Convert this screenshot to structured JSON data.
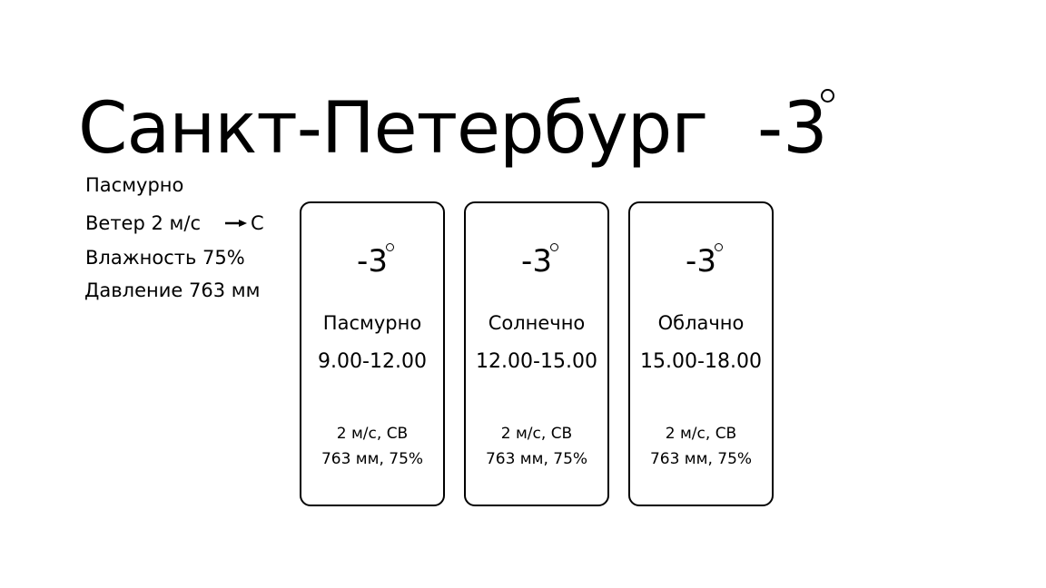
{
  "current": {
    "city": "Санкт-Петербург",
    "temperature": "-3",
    "condition": "Пасмурно",
    "wind_label": "Ветер 2 м/с",
    "wind_direction": "С",
    "wind_arrow_icon": "arrow-right-icon",
    "humidity_label": "Влажность 75%",
    "pressure_label": "Давление 763 мм"
  },
  "forecast": [
    {
      "temperature": "-3",
      "condition": "Пасмурно",
      "time": "9.00-12.00",
      "wind": "2 м/с, СВ",
      "pressure_humidity": "763 мм, 75%"
    },
    {
      "temperature": "-3",
      "condition": "Солнечно",
      "time": "12.00-15.00",
      "wind": "2 м/с, СВ",
      "pressure_humidity": "763 мм, 75%"
    },
    {
      "temperature": "-3",
      "condition": "Облачно",
      "time": "15.00-18.00",
      "wind": "2 м/с, СВ",
      "pressure_humidity": "763 мм, 75%"
    }
  ]
}
